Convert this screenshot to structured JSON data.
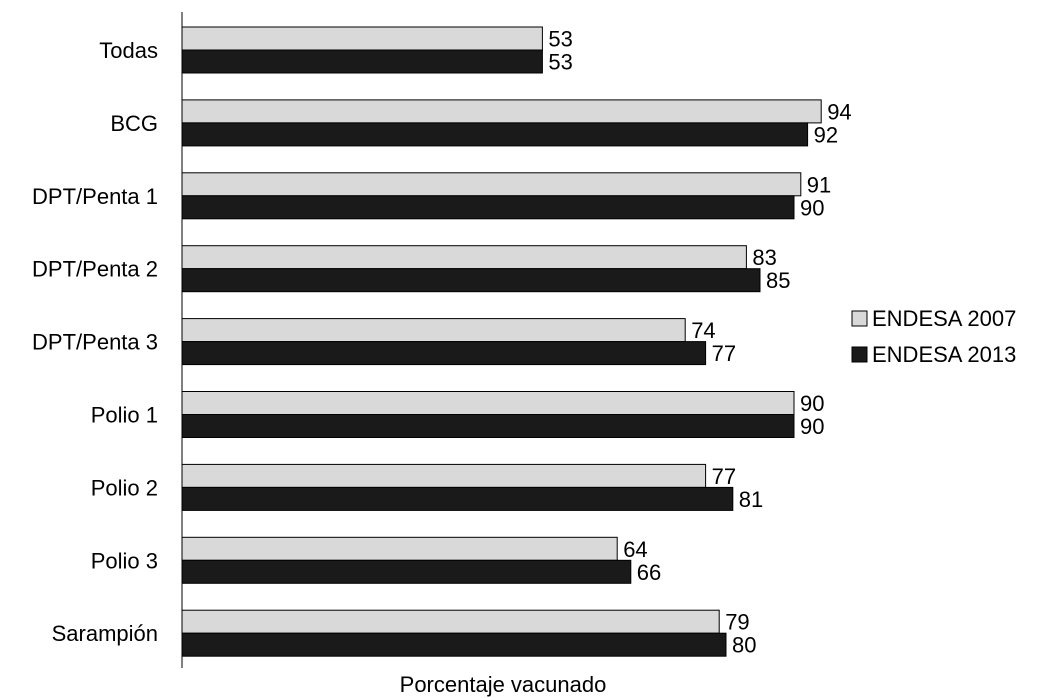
{
  "chart_data": {
    "type": "bar",
    "orientation": "horizontal",
    "title": "",
    "xlabel": "Porcentaje vacunado",
    "ylabel": "",
    "xlim": [
      0,
      100
    ],
    "grid": false,
    "legend_position": "right",
    "categories": [
      "Todas",
      "BCG",
      "DPT/Penta 1",
      "DPT/Penta 2",
      "DPT/Penta 3",
      "Polio 1",
      "Polio 2",
      "Polio 3",
      "Sarampión"
    ],
    "series": [
      {
        "name": "ENDESA 2007",
        "color": "#d9d9d9",
        "values": [
          53,
          94,
          91,
          83,
          74,
          90,
          77,
          64,
          79
        ]
      },
      {
        "name": "ENDESA 2013",
        "color": "#1a1a1a",
        "values": [
          53,
          92,
          90,
          85,
          77,
          90,
          81,
          66,
          80
        ]
      }
    ]
  }
}
